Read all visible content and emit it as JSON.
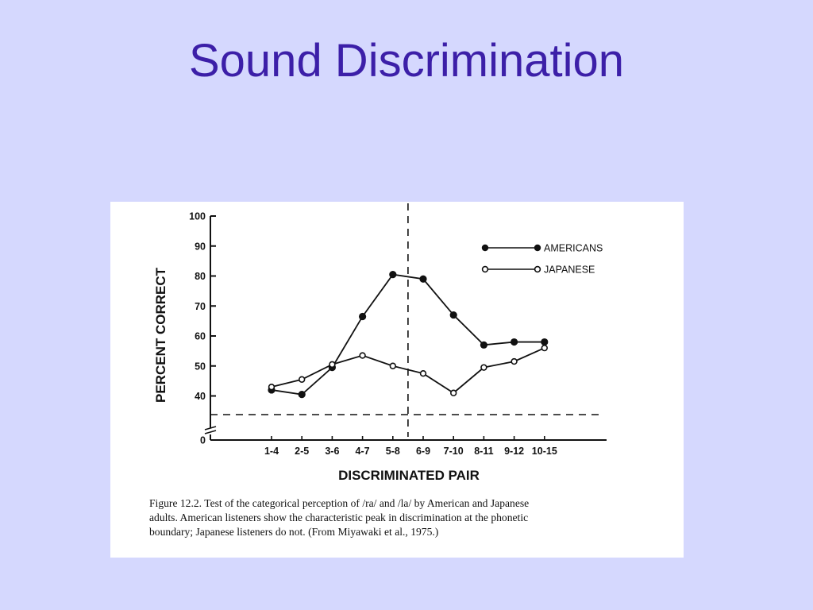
{
  "slide": {
    "title": "Sound Discrimination"
  },
  "chart_data": {
    "type": "line",
    "xlabel": "DISCRIMINATED PAIR",
    "ylabel": "PERCENT CORRECT",
    "categories": [
      "1-4",
      "2-5",
      "3-6",
      "4-7",
      "5-8",
      "6-9",
      "7-10",
      "8-11",
      "9-12",
      "10-15"
    ],
    "y_ticks": [
      "100",
      "90",
      "80",
      "70",
      "60",
      "50",
      "40",
      "0"
    ],
    "ylim": [
      0,
      100
    ],
    "axis_break": true,
    "series": [
      {
        "name": "AMERICANS",
        "marker": "filled",
        "values": [
          42,
          40.5,
          49.5,
          66.5,
          80.5,
          79,
          67,
          57,
          58,
          58
        ]
      },
      {
        "name": "JAPANESE",
        "marker": "open",
        "values": [
          43,
          45.5,
          50.5,
          53.5,
          50,
          47.5,
          41,
          49.5,
          51.5,
          56
        ]
      }
    ],
    "reference_lines": {
      "vertical_dashed_between": [
        "5-8",
        "6-9"
      ],
      "horizontal_dashed": "chance level"
    },
    "legend_position": "top-right",
    "grid": false
  },
  "caption": {
    "lines": [
      "Figure 12.2. Test of the categorical perception of /ra/ and /la/ by American and Japanese",
      "adults. American listeners show the characteristic peak in discrimination at the phonetic",
      "boundary; Japanese listeners do not. (From Miyawaki et al., 1975.)"
    ]
  }
}
